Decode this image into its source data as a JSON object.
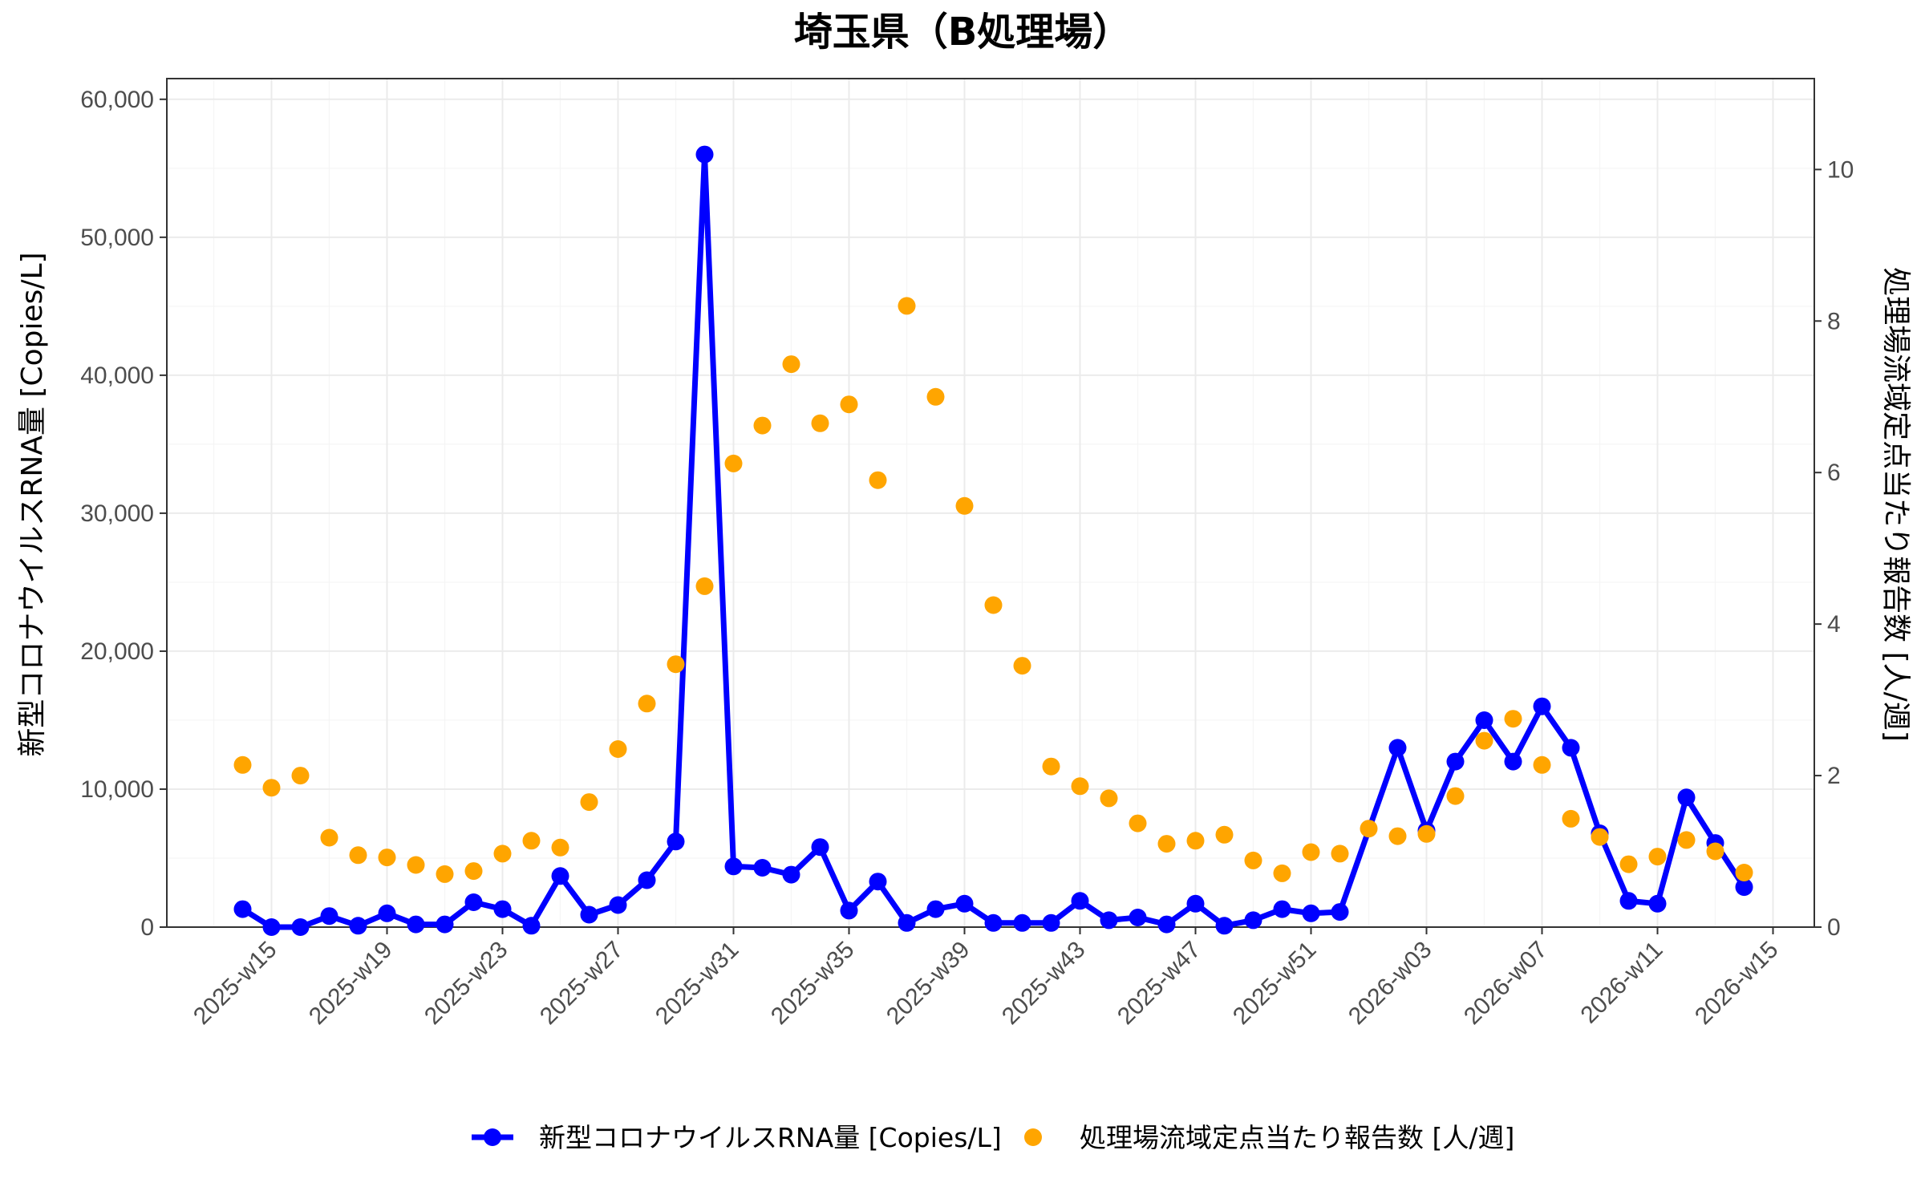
{
  "chart_data": {
    "type": "line",
    "title": "埼玉県（B処理場）",
    "xlabel": "",
    "ylabel": "新型コロナウイルスRNA量 [Copies/L]",
    "y2label": "処理場流域定点当たり報告数 [人/週]",
    "ylim": [
      0,
      61500
    ],
    "y2lim": [
      0,
      11.2
    ],
    "yticks": [
      "0",
      "10,000",
      "20,000",
      "30,000",
      "40,000",
      "50,000",
      "60,000"
    ],
    "y2ticks": [
      "0",
      "2",
      "4",
      "6",
      "8",
      "10"
    ],
    "x_tick_labels": [
      "2025-w15",
      "2025-w19",
      "2025-w23",
      "2025-w27",
      "2025-w31",
      "2025-w35",
      "2025-w39",
      "2025-w43",
      "2025-w47",
      "2025-w51",
      "2026-w03",
      "2026-w07",
      "2026-w11",
      "2026-w15"
    ],
    "grid": true,
    "legend_position": "bottom",
    "series": [
      {
        "name": "新型コロナウイルスRNA量 [Copies/L]",
        "axis": "left",
        "style": "line+points",
        "color": "#0000ff",
        "points": [
          [
            "2025-w14",
            1300
          ],
          [
            "2025-w15",
            0
          ],
          [
            "2025-w16",
            0
          ],
          [
            "2025-w17",
            800
          ],
          [
            "2025-w18",
            100
          ],
          [
            "2025-w19",
            1000
          ],
          [
            "2025-w20",
            200
          ],
          [
            "2025-w21",
            200
          ],
          [
            "2025-w22",
            1800
          ],
          [
            "2025-w23",
            1300
          ],
          [
            "2025-w24",
            100
          ],
          [
            "2025-w25",
            3700
          ],
          [
            "2025-w26",
            900
          ],
          [
            "2025-w27",
            1600
          ],
          [
            "2025-w28",
            3400
          ],
          [
            "2025-w29",
            6200
          ],
          [
            "2025-w30",
            56000
          ],
          [
            "2025-w31",
            4400
          ],
          [
            "2025-w32",
            4300
          ],
          [
            "2025-w33",
            3800
          ],
          [
            "2025-w34",
            5800
          ],
          [
            "2025-w35",
            1200
          ],
          [
            "2025-w36",
            3300
          ],
          [
            "2025-w37",
            300
          ],
          [
            "2025-w38",
            1300
          ],
          [
            "2025-w39",
            1700
          ],
          [
            "2025-w40",
            300
          ],
          [
            "2025-w41",
            300
          ],
          [
            "2025-w42",
            300
          ],
          [
            "2025-w43",
            1900
          ],
          [
            "2025-w44",
            500
          ],
          [
            "2025-w45",
            700
          ],
          [
            "2025-w46",
            200
          ],
          [
            "2025-w47",
            1700
          ],
          [
            "2025-w48",
            100
          ],
          [
            "2025-w49",
            500
          ],
          [
            "2025-w50",
            1300
          ],
          [
            "2025-w51",
            1000
          ],
          [
            "2025-w52",
            1100
          ],
          [
            "2026-w02",
            13000
          ],
          [
            "2026-w03",
            7000
          ],
          [
            "2026-w04",
            12000
          ],
          [
            "2026-w05",
            15000
          ],
          [
            "2026-w06",
            12000
          ],
          [
            "2026-w07",
            16000
          ],
          [
            "2026-w08",
            13000
          ],
          [
            "2026-w09",
            6800
          ],
          [
            "2026-w10",
            1900
          ],
          [
            "2026-w11",
            1700
          ],
          [
            "2026-w12",
            9400
          ],
          [
            "2026-w13",
            6100
          ],
          [
            "2026-w14",
            2900
          ]
        ]
      },
      {
        "name": "処理場流域定点当たり報告数 [人/週]",
        "axis": "right",
        "style": "points",
        "color": "#ffa500",
        "points": [
          [
            "2025-w14",
            2.14
          ],
          [
            "2025-w15",
            1.84
          ],
          [
            "2025-w16",
            2.0
          ],
          [
            "2025-w17",
            1.18
          ],
          [
            "2025-w18",
            0.95
          ],
          [
            "2025-w19",
            0.92
          ],
          [
            "2025-w20",
            0.82
          ],
          [
            "2025-w21",
            0.7
          ],
          [
            "2025-w22",
            0.74
          ],
          [
            "2025-w23",
            0.97
          ],
          [
            "2025-w24",
            1.14
          ],
          [
            "2025-w25",
            1.05
          ],
          [
            "2025-w26",
            1.65
          ],
          [
            "2025-w27",
            2.35
          ],
          [
            "2025-w28",
            2.95
          ],
          [
            "2025-w29",
            3.47
          ],
          [
            "2025-w30",
            4.5
          ],
          [
            "2025-w31",
            6.12
          ],
          [
            "2025-w32",
            6.62
          ],
          [
            "2025-w33",
            7.43
          ],
          [
            "2025-w34",
            6.65
          ],
          [
            "2025-w35",
            6.9
          ],
          [
            "2025-w36",
            5.9
          ],
          [
            "2025-w37",
            8.2
          ],
          [
            "2025-w38",
            7.0
          ],
          [
            "2025-w39",
            5.56
          ],
          [
            "2025-w40",
            4.25
          ],
          [
            "2025-w41",
            3.45
          ],
          [
            "2025-w42",
            2.12
          ],
          [
            "2025-w43",
            1.86
          ],
          [
            "2025-w44",
            1.7
          ],
          [
            "2025-w45",
            1.37
          ],
          [
            "2025-w46",
            1.1
          ],
          [
            "2025-w47",
            1.14
          ],
          [
            "2025-w48",
            1.22
          ],
          [
            "2025-w49",
            0.88
          ],
          [
            "2025-w50",
            0.71
          ],
          [
            "2025-w51",
            0.99
          ],
          [
            "2025-w52",
            0.97
          ],
          [
            "2026-w01",
            1.3
          ],
          [
            "2026-w02",
            1.2
          ],
          [
            "2026-w03",
            1.23
          ],
          [
            "2026-w04",
            1.73
          ],
          [
            "2026-w05",
            2.46
          ],
          [
            "2026-w06",
            2.75
          ],
          [
            "2026-w07",
            2.14
          ],
          [
            "2026-w08",
            1.43
          ],
          [
            "2026-w09",
            1.19
          ],
          [
            "2026-w10",
            0.83
          ],
          [
            "2026-w11",
            0.93
          ],
          [
            "2026-w12",
            1.15
          ],
          [
            "2026-w13",
            1.0
          ],
          [
            "2026-w14",
            0.72
          ]
        ]
      }
    ]
  }
}
